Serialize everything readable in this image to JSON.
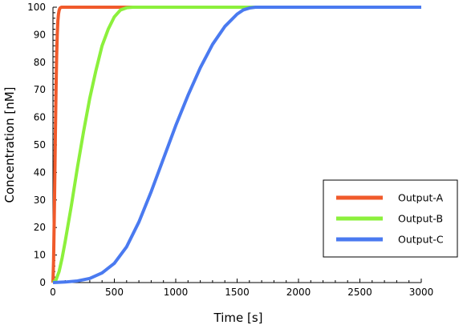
{
  "chart_data": {
    "type": "line",
    "title": "",
    "xlabel": "Time [s]",
    "ylabel": "Concentration [nM]",
    "xlim": [
      0,
      3000
    ],
    "ylim": [
      0,
      100
    ],
    "xticks": [
      0,
      500,
      1000,
      1500,
      2000,
      2500,
      3000
    ],
    "yticks": [
      0,
      10,
      20,
      30,
      40,
      50,
      60,
      70,
      80,
      90,
      100
    ],
    "grid": false,
    "legend_position": "right",
    "series": [
      {
        "name": "Output-A",
        "color": "#f05a2b",
        "x": [
          0,
          5,
          10,
          15,
          20,
          25,
          30,
          35,
          40,
          45,
          50,
          55,
          60,
          70,
          80,
          100,
          150,
          600,
          3000
        ],
        "y": [
          0,
          8,
          22,
          38,
          55,
          70,
          82,
          90,
          95,
          97.5,
          98.8,
          99.5,
          99.8,
          100,
          100,
          100,
          100,
          100,
          100
        ]
      },
      {
        "name": "Output-B",
        "color": "#8cf03c",
        "x": [
          0,
          25,
          50,
          75,
          100,
          150,
          200,
          250,
          300,
          350,
          400,
          450,
          500,
          550,
          600,
          650,
          700,
          800,
          1700,
          3000
        ],
        "y": [
          0,
          1,
          4,
          9,
          15,
          28,
          42,
          55,
          67,
          77,
          86,
          92,
          96.5,
          99,
          99.8,
          100,
          100,
          100,
          100,
          100
        ]
      },
      {
        "name": "Output-C",
        "color": "#4a7af0",
        "x": [
          0,
          100,
          200,
          300,
          400,
          500,
          600,
          700,
          800,
          900,
          1000,
          1100,
          1200,
          1300,
          1400,
          1500,
          1550,
          1600,
          1650,
          1700,
          2000,
          3000
        ],
        "y": [
          0,
          0.2,
          0.6,
          1.5,
          3.5,
          7,
          13,
          22,
          33,
          45,
          57,
          68,
          78,
          86.5,
          93,
          97.5,
          99,
          99.7,
          100,
          100,
          100,
          100
        ]
      }
    ]
  }
}
